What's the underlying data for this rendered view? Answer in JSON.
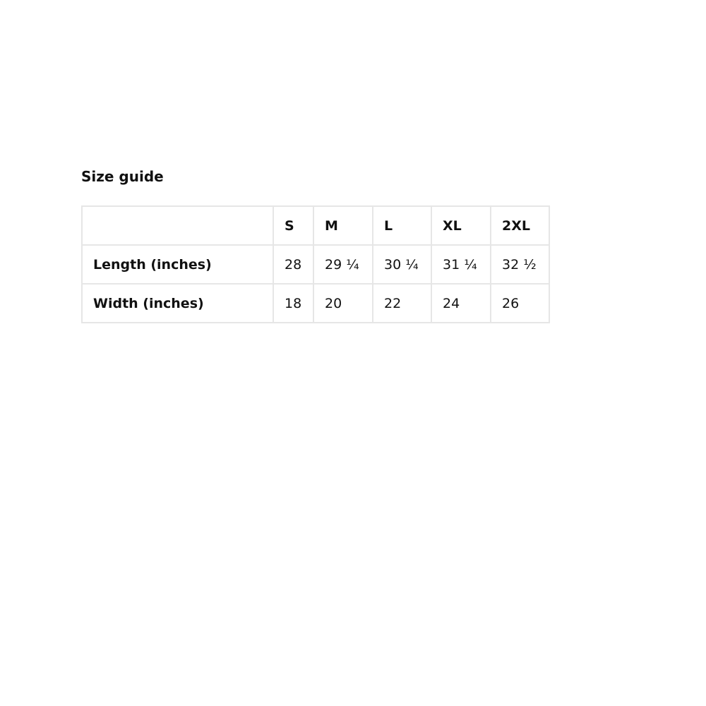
{
  "title": "Size guide",
  "table": {
    "headers": [
      "",
      "S",
      "M",
      "L",
      "XL",
      "2XL"
    ],
    "rows": [
      {
        "label": "Length (inches)",
        "values": [
          "28",
          "29 ¼",
          "30 ¼",
          "31 ¼",
          "32 ½"
        ]
      },
      {
        "label": "Width (inches)",
        "values": [
          "18",
          "20",
          "22",
          "24",
          "26"
        ]
      }
    ]
  }
}
